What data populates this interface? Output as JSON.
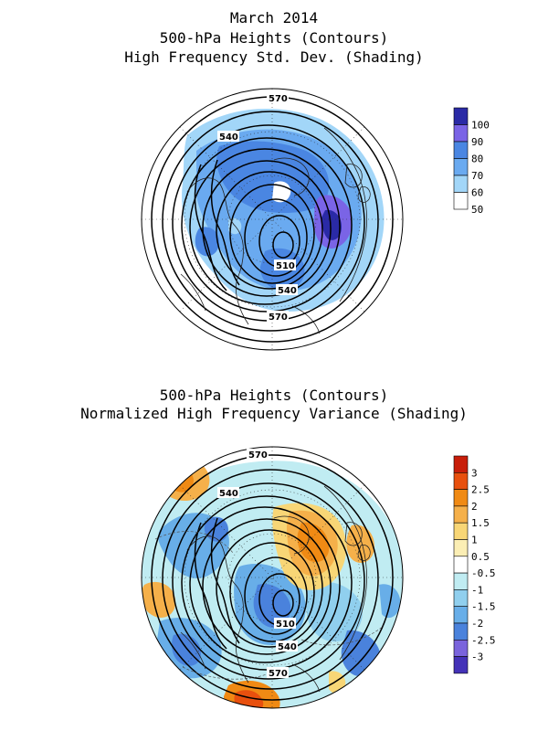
{
  "panel1": {
    "title_lines": [
      "March 2014",
      "500-hPa Heights (Contours)",
      "High Frequency Std. Dev. (Shading)"
    ],
    "contour_labels": [
      "570",
      "540",
      "510",
      "540",
      "570"
    ],
    "colorbar": {
      "labels": [
        "100",
        "90",
        "80",
        "70",
        "60",
        "50"
      ],
      "colors": [
        "#2a2aa6",
        "#7a64e6",
        "#4a86e2",
        "#6aaaf0",
        "#a2d6f8",
        "#ffffff"
      ]
    }
  },
  "panel2": {
    "title_lines": [
      "500-hPa Heights (Contours)",
      "Normalized High Frequency Variance (Shading)"
    ],
    "contour_labels": [
      "570",
      "540",
      "510",
      "540",
      "570"
    ],
    "colorbar": {
      "labels": [
        "3",
        "2.5",
        "2",
        "1.5",
        "1",
        "0.5",
        "-0.5",
        "-1",
        "-1.5",
        "-2",
        "-2.5",
        "-3"
      ],
      "colors": [
        "#c81e0a",
        "#e8500e",
        "#f08a14",
        "#f5b04a",
        "#f8d676",
        "#fbeeb4",
        "#ffffff",
        "#c0ecf2",
        "#90cfee",
        "#68aee8",
        "#4a82dc",
        "#7a64dc",
        "#4432b8"
      ]
    }
  }
}
